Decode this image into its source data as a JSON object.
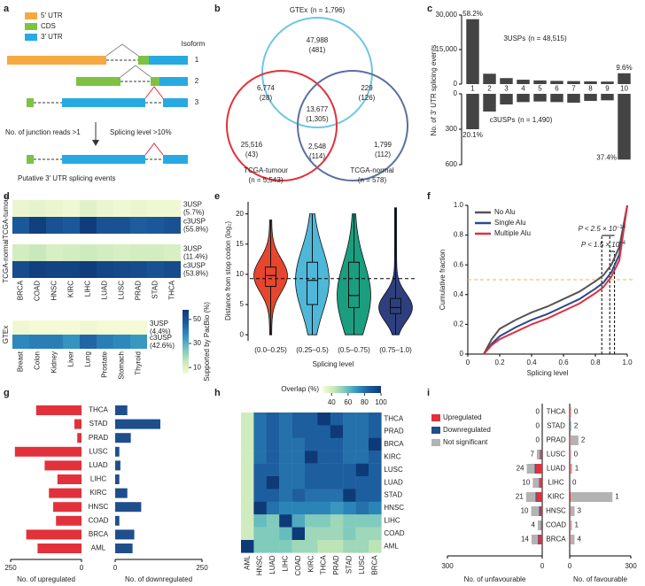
{
  "chart_data": [
    {
      "type": "diagram",
      "panel": "a",
      "legend": [
        {
          "name": "5′ UTR",
          "color": "#f7a941"
        },
        {
          "name": "CDS",
          "color": "#7dc242"
        },
        {
          "name": "3′ UTR",
          "color": "#27aae1"
        }
      ],
      "isoform_title": "Isoform",
      "isoforms": [
        "1",
        "2",
        "3"
      ],
      "step_left": "No. of junction reads >1",
      "step_right": "Splicing level >10%",
      "result": "Putative 3′ UTR splicing events"
    },
    {
      "type": "venn",
      "panel": "b",
      "sets": [
        {
          "name": "GTEx",
          "n": "(n = 1,796)",
          "color": "#6ec6e6"
        },
        {
          "name": "TCGA-tumour",
          "n": "(n = 5,543)",
          "color": "#e2313b"
        },
        {
          "name": "TCGA-normal",
          "n": "(n = 578)",
          "color": "#5b6f9f"
        }
      ],
      "regions": [
        [
          "47,988",
          "(481)"
        ],
        [
          "6,774",
          "(28)"
        ],
        [
          "229",
          "(126)"
        ],
        [
          "13,677",
          "(1,305)"
        ],
        [
          "25,516",
          "(43)"
        ],
        [
          "2,548",
          "(114)"
        ],
        [
          "1,799",
          "(112)"
        ]
      ]
    },
    {
      "type": "mirrored_bar",
      "panel": "c",
      "y_label": "No. of 3′ UTR splicing events",
      "categories": [
        "1",
        "2",
        "3",
        "4",
        "5",
        "6",
        "7",
        "8",
        "9",
        "10"
      ],
      "color": "#444444",
      "series": [
        {
          "name": "3USPs",
          "n": "(n = 48,515)",
          "values": [
            28200,
            4500,
            2600,
            1900,
            1600,
            1400,
            1300,
            1200,
            1100,
            4700
          ],
          "ylim": [
            0,
            30000
          ],
          "yticks": [
            0,
            {
              "value": 15000,
              "label": "15,000"
            },
            {
              "value": 30000,
              "label": "30,000"
            }
          ],
          "first_note": "58.2%",
          "last_note": "9.6%"
        },
        {
          "name": "c3USPs",
          "n": "(n = 1,490)",
          "values": [
            300,
            150,
            90,
            70,
            65,
            70,
            75,
            60,
            55,
            557
          ],
          "ylim": [
            0,
            600
          ],
          "yticks": [
            0,
            300,
            600
          ],
          "first_note": "20.1%",
          "last_note": "37.4%"
        }
      ]
    },
    {
      "type": "heatmap_group",
      "panel": "d",
      "cancers": [
        "BRCA",
        "COAD",
        "HNSC",
        "KIRC",
        "LIHC",
        "LUAD",
        "LUSC",
        "PRAD",
        "STAD",
        "THCA"
      ],
      "tissues": [
        "Breast",
        "Colon",
        "Kidney",
        "Liver",
        "Lung",
        "Prostate",
        "Stomach",
        "Thyroid"
      ],
      "colorbar": {
        "label": "Supported by PacBio (%)",
        "lim": [
          5,
          58
        ],
        "ticks": [
          10,
          30,
          50
        ],
        "colors": [
          "#f4fad6",
          "#c2e6b6",
          "#6fc3be",
          "#2f8fc0",
          "#1c5a9c",
          "#0e3a78"
        ]
      },
      "blocks": [
        {
          "name": "TCGA-tumour",
          "rows": [
            {
              "name": "3USP",
              "share": "(5.7%)",
              "values": [
                7,
                8,
                7,
                6,
                9,
                7,
                6,
                7,
                6,
                6
              ]
            },
            {
              "name": "c3USP",
              "share": "(55.8%)",
              "values": [
                48,
                56,
                50,
                48,
                57,
                50,
                50,
                47,
                48,
                50
              ]
            }
          ]
        },
        {
          "name": "TCGA-normal",
          "rows": [
            {
              "name": "3USP",
              "share": "(11.4%)",
              "values": [
                12,
                14,
                11,
                12,
                13,
                12,
                11,
                12,
                12,
                11
              ]
            },
            {
              "name": "c3USP",
              "share": "(53.8%)",
              "values": [
                52,
                56,
                55,
                55,
                57,
                54,
                53,
                52,
                50,
                52
              ]
            }
          ]
        },
        {
          "name": "GTEx",
          "rows": [
            {
              "name": "3USP",
              "share": "(4.4%)",
              "values": [
                6,
                5,
                5,
                5,
                6,
                5,
                5,
                5
              ]
            },
            {
              "name": "c3USP",
              "share": "(42.6%)",
              "values": [
                38,
                40,
                40,
                36,
                45,
                40,
                38,
                35
              ]
            }
          ]
        }
      ]
    },
    {
      "type": "violin",
      "panel": "e",
      "y_label": "Distance from stop codon (log₂)",
      "x_label": "Splicing level",
      "categories": [
        "(0.0–0.25)",
        "(0.25–0.5)",
        "(0.5–0.75)",
        "(0.75–1.0)"
      ],
      "ylim": [
        -1,
        22
      ],
      "yticks": [
        0,
        5,
        10,
        15,
        20
      ],
      "reference_line": 9.3,
      "violins": [
        {
          "color": "#e6462d",
          "min": 0,
          "q1": 8,
          "median": 9.8,
          "q3": 11.2,
          "max": 19
        },
        {
          "color": "#4fb8d9",
          "min": 0,
          "q1": 5,
          "median": 9,
          "q3": 12,
          "max": 20
        },
        {
          "color": "#1a9e7f",
          "min": 0,
          "q1": 4.5,
          "median": 6.5,
          "q3": 12,
          "max": 20
        },
        {
          "color": "#2d3f7f",
          "min": 0,
          "q1": 3.5,
          "median": 4.5,
          "q3": 6,
          "max": 21
        }
      ]
    },
    {
      "type": "line",
      "panel": "f",
      "x_label": "Splicing level",
      "y_label": "Cumulative fraction",
      "xlim": [
        0,
        1
      ],
      "ylim": [
        0,
        1
      ],
      "xticks": [
        0,
        0.2,
        0.4,
        0.6,
        0.8,
        {
          "value": 1,
          "label": "1.0"
        }
      ],
      "yticks": [
        0,
        0.2,
        0.4,
        0.6,
        0.8,
        {
          "value": 1,
          "label": "1.0"
        }
      ],
      "x": [
        0.1,
        0.15,
        0.2,
        0.3,
        0.4,
        0.5,
        0.6,
        0.7,
        0.8,
        0.85,
        0.9,
        0.95,
        1.0
      ],
      "series": [
        {
          "name": "No Alu",
          "color": "#555555",
          "values": [
            0,
            0.1,
            0.17,
            0.23,
            0.28,
            0.32,
            0.37,
            0.42,
            0.49,
            0.53,
            0.6,
            0.72,
            1.0
          ]
        },
        {
          "name": "Single Alu",
          "color": "#2b4a8c",
          "values": [
            0,
            0.07,
            0.12,
            0.18,
            0.23,
            0.27,
            0.32,
            0.37,
            0.44,
            0.48,
            0.55,
            0.67,
            1.0
          ]
        },
        {
          "name": "Multiple Alu",
          "color": "#e03040",
          "values": [
            0,
            0.06,
            0.1,
            0.15,
            0.2,
            0.24,
            0.29,
            0.34,
            0.41,
            0.45,
            0.52,
            0.63,
            1.0
          ]
        }
      ],
      "hline": 0.5,
      "hline_color": "#f0b848",
      "vlines": [
        0.84,
        0.89,
        0.92
      ],
      "annotations": [
        {
          "text": "P < 2.5 × 10",
          "exponent": "−14"
        },
        {
          "text": "P < 1.5 × 10",
          "exponent": "−4"
        }
      ]
    },
    {
      "type": "diverging_bar",
      "panel": "g",
      "categories": [
        "THCA",
        "STAD",
        "PRAD",
        "LUSC",
        "LUAD",
        "LIHC",
        "KIRC",
        "HNSC",
        "COAD",
        "BRCA",
        "AML"
      ],
      "left": {
        "label": "No. of upregulated",
        "color": "#e2313b",
        "values": [
          160,
          25,
          15,
          235,
          130,
          85,
          115,
          100,
          90,
          195,
          155
        ],
        "xlim": [
          0,
          250
        ],
        "xticks": [
          0,
          250
        ]
      },
      "right": {
        "label": "No. of downregulated",
        "color": "#1f4e8c",
        "values": [
          35,
          130,
          45,
          12,
          15,
          12,
          35,
          75,
          12,
          55,
          50
        ],
        "xlim": [
          0,
          250
        ],
        "xticks": [
          0,
          250
        ]
      }
    },
    {
      "type": "heatmap",
      "panel": "h",
      "rows": [
        "THCA",
        "PRAD",
        "BRCA",
        "KIRC",
        "LUSC",
        "LUAD",
        "STAD",
        "HNSC",
        "LIHC",
        "COAD",
        "AML"
      ],
      "columns": [
        "AML",
        "HNSC",
        "LUAD",
        "LIHC",
        "COAD",
        "KIRC",
        "THCA",
        "PRAD",
        "STAD",
        "LUSC",
        "BRCA"
      ],
      "values": [
        [
          40,
          80,
          85,
          80,
          85,
          85,
          100,
          85,
          80,
          80,
          85
        ],
        [
          40,
          80,
          85,
          80,
          85,
          85,
          85,
          100,
          80,
          80,
          85
        ],
        [
          40,
          80,
          85,
          80,
          80,
          85,
          85,
          85,
          80,
          80,
          100
        ],
        [
          40,
          80,
          85,
          80,
          80,
          100,
          85,
          85,
          80,
          80,
          85
        ],
        [
          40,
          85,
          85,
          80,
          80,
          85,
          85,
          85,
          85,
          100,
          85
        ],
        [
          40,
          85,
          100,
          80,
          80,
          85,
          85,
          85,
          85,
          85,
          85
        ],
        [
          40,
          85,
          85,
          80,
          85,
          80,
          80,
          80,
          100,
          85,
          85
        ],
        [
          40,
          100,
          80,
          75,
          75,
          75,
          75,
          70,
          75,
          80,
          75
        ],
        [
          40,
          60,
          55,
          100,
          65,
          55,
          55,
          50,
          55,
          55,
          55
        ],
        [
          40,
          55,
          55,
          60,
          100,
          50,
          50,
          50,
          55,
          50,
          50
        ],
        [
          100,
          55,
          55,
          55,
          50,
          50,
          45,
          45,
          50,
          50,
          45
        ]
      ],
      "colorbar": {
        "label": "Overlap (%)",
        "lim": [
          30,
          100
        ],
        "ticks": [
          40,
          60,
          80,
          100
        ],
        "colors": [
          "#f4fad6",
          "#c2e6b6",
          "#6fc3be",
          "#2f8fc0",
          "#1c5a9c",
          "#0e3a78"
        ]
      }
    },
    {
      "type": "diverging_stacked_bar",
      "panel": "i",
      "categories": [
        "THCA",
        "STAD",
        "PRAD",
        "LUSC",
        "LUAD",
        "LIHC",
        "KIRC",
        "HNSC",
        "COAD",
        "BRCA"
      ],
      "series": [
        {
          "name": "Upregulated",
          "color": "#e2313b",
          "unfavourable": [
            0,
            0,
            0,
            5,
            20,
            8,
            18,
            6,
            3,
            12
          ],
          "favourable": [
            3,
            0,
            3,
            3,
            4,
            0,
            5,
            3,
            3,
            3
          ]
        },
        {
          "name": "Downregulated",
          "color": "#1f4e8c",
          "unfavourable": [
            0,
            0,
            0,
            2,
            4,
            2,
            3,
            4,
            1,
            2
          ],
          "favourable": [
            0,
            2,
            0,
            0,
            0,
            0,
            0,
            1,
            0,
            1
          ]
        },
        {
          "name": "Not significant",
          "color": "#b3b3b3",
          "unfavourable": [
            0,
            0,
            0,
            10,
            25,
            20,
            30,
            25,
            10,
            20
          ],
          "favourable": [
            5,
            6,
            40,
            4,
            8,
            0,
            205,
            20,
            8,
            20
          ]
        }
      ],
      "unfavourable_counts": [
        0,
        0,
        0,
        7,
        24,
        10,
        21,
        10,
        4,
        14
      ],
      "favourable_counts": [
        0,
        2,
        2,
        0,
        1,
        0,
        1,
        3,
        1,
        4
      ],
      "unfavourable_axis": {
        "label": "No. of unfavourable",
        "xlim": [
          0,
          300
        ],
        "xticks": [
          0,
          300
        ]
      },
      "favourable_axis": {
        "label": "No. of favourable",
        "xlim": [
          0,
          300
        ],
        "xticks": [
          0,
          300
        ]
      }
    }
  ]
}
